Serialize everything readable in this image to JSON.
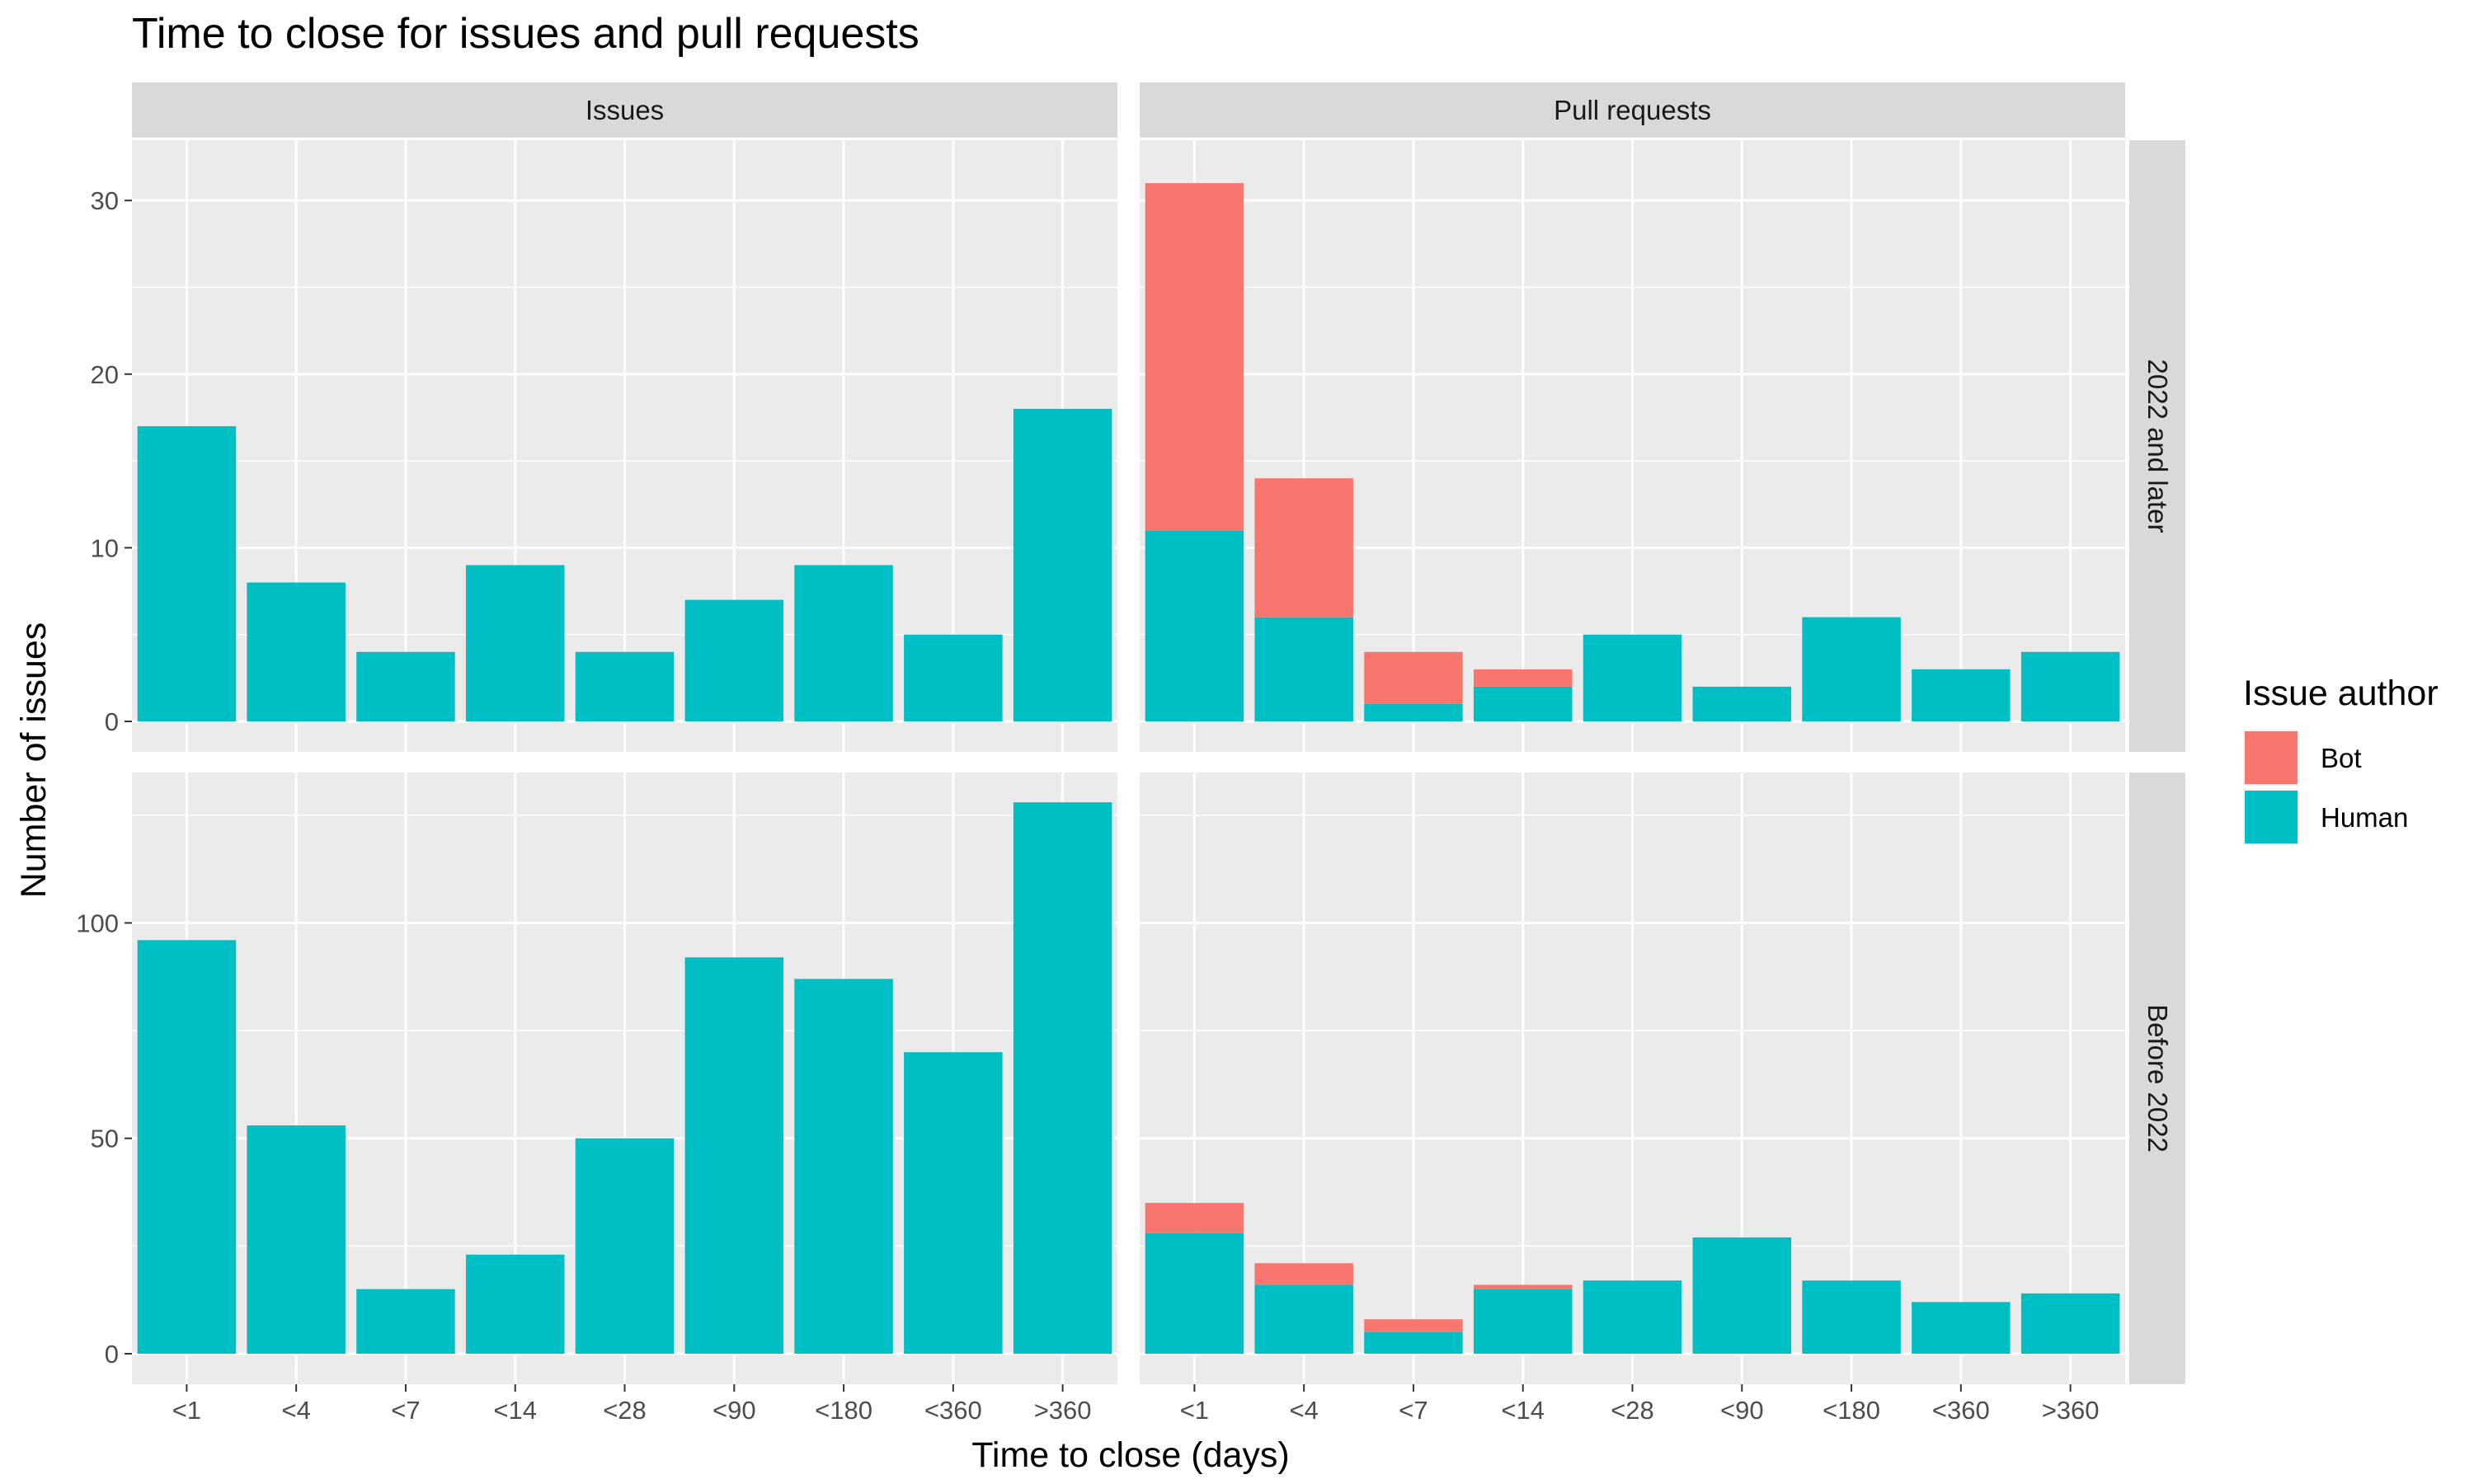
{
  "chart_data": {
    "type": "bar",
    "stacked": true,
    "title": "Time to close for issues and pull requests",
    "xlabel": "Time to close (days)",
    "ylabel": "Number of issues",
    "categories": [
      "<1",
      "<4",
      "<7",
      "<14",
      "<28",
      "<90",
      "<180",
      "<360",
      ">360"
    ],
    "facet_columns": [
      "Issues",
      "Pull requests"
    ],
    "facet_rows": [
      "2022 and later",
      "Before 2022"
    ],
    "legend": {
      "title": "Issue author",
      "position": "right",
      "entries": [
        {
          "name": "Bot",
          "color": "#F8766D"
        },
        {
          "name": "Human",
          "color": "#00BFC4"
        }
      ]
    },
    "grid": true,
    "panels": [
      {
        "column": "Issues",
        "row": "2022 and later",
        "ylim": [
          0,
          33
        ],
        "yticks": [
          0,
          10,
          20,
          30
        ],
        "series": [
          {
            "name": "Human",
            "values": [
              17,
              8,
              4,
              9,
              4,
              7,
              9,
              5,
              18
            ]
          },
          {
            "name": "Bot",
            "values": [
              0,
              0,
              0,
              0,
              0,
              0,
              0,
              0,
              0
            ]
          }
        ]
      },
      {
        "column": "Pull requests",
        "row": "2022 and later",
        "ylim": [
          0,
          33
        ],
        "yticks": [
          0,
          10,
          20,
          30
        ],
        "series": [
          {
            "name": "Human",
            "values": [
              11,
              6,
              1,
              2,
              5,
              2,
              6,
              3,
              4
            ]
          },
          {
            "name": "Bot",
            "values": [
              20,
              8,
              3,
              1,
              0,
              0,
              0,
              0,
              0
            ]
          }
        ]
      },
      {
        "column": "Issues",
        "row": "Before 2022",
        "ylim": [
          0,
          133
        ],
        "yticks": [
          0,
          50,
          100
        ],
        "series": [
          {
            "name": "Human",
            "values": [
              96,
              53,
              15,
              23,
              50,
              92,
              87,
              70,
              128
            ]
          },
          {
            "name": "Bot",
            "values": [
              0,
              0,
              0,
              0,
              0,
              0,
              0,
              0,
              0
            ]
          }
        ]
      },
      {
        "column": "Pull requests",
        "row": "Before 2022",
        "ylim": [
          0,
          133
        ],
        "yticks": [
          0,
          50,
          100
        ],
        "series": [
          {
            "name": "Human",
            "values": [
              28,
              16,
              5,
              15,
              17,
              27,
              17,
              12,
              14
            ]
          },
          {
            "name": "Bot",
            "values": [
              7,
              5,
              3,
              1,
              0,
              0,
              0,
              0,
              0
            ]
          }
        ]
      }
    ]
  }
}
